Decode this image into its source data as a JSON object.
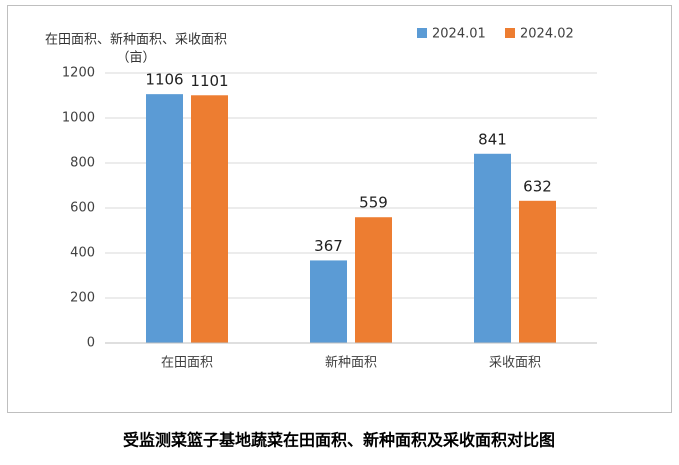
{
  "chart_data": {
    "type": "bar",
    "title": "受监测菜篮子基地蔬菜在田面积、新种面积及采收面积对比图",
    "y_label": [
      "在田面积、新种面积、采收面积",
      "（亩）"
    ],
    "categories": [
      "在田面积",
      "新种面积",
      "采收面积"
    ],
    "series": [
      {
        "name": "2024.01",
        "color": "#5b9bd5",
        "values": [
          1106,
          367,
          841
        ]
      },
      {
        "name": "2024.02",
        "color": "#ed7d31",
        "values": [
          1101,
          559,
          632
        ]
      }
    ],
    "ylim": [
      0,
      1200
    ],
    "yticks": [
      0,
      200,
      400,
      600,
      800,
      1000,
      1200
    ],
    "grid": true,
    "legend": "top-right"
  }
}
